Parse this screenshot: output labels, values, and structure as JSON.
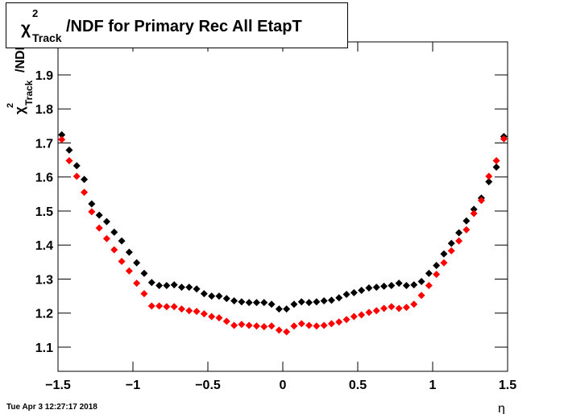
{
  "chart_data": {
    "type": "scatter",
    "title": {
      "symbol": "χ",
      "sup": "2",
      "sub": "Track",
      "rest": "/NDF for Primary Rec All EtapT"
    },
    "y_label": {
      "symbol": "χ",
      "sup": "2",
      "sub": "Track",
      "rest": "/NDF"
    },
    "x_label": "η",
    "timestamp": "Tue Apr  3 12:27:17 2018",
    "x": [
      -1.475,
      -1.425,
      -1.375,
      -1.325,
      -1.275,
      -1.225,
      -1.175,
      -1.125,
      -1.075,
      -1.025,
      -0.975,
      -0.925,
      -0.875,
      -0.825,
      -0.775,
      -0.725,
      -0.675,
      -0.625,
      -0.575,
      -0.525,
      -0.475,
      -0.425,
      -0.375,
      -0.325,
      -0.275,
      -0.225,
      -0.175,
      -0.125,
      -0.075,
      -0.025,
      0.025,
      0.075,
      0.125,
      0.175,
      0.225,
      0.275,
      0.325,
      0.375,
      0.425,
      0.475,
      0.525,
      0.575,
      0.625,
      0.675,
      0.725,
      0.775,
      0.825,
      0.875,
      0.925,
      0.975,
      1.025,
      1.075,
      1.125,
      1.175,
      1.225,
      1.275,
      1.325,
      1.375,
      1.425,
      1.475
    ],
    "series": [
      {
        "color": "#000000",
        "values": [
          1.724,
          1.679,
          1.633,
          1.593,
          1.521,
          1.488,
          1.469,
          1.438,
          1.412,
          1.379,
          1.348,
          1.317,
          1.29,
          1.281,
          1.281,
          1.283,
          1.276,
          1.276,
          1.271,
          1.257,
          1.25,
          1.25,
          1.243,
          1.236,
          1.233,
          1.231,
          1.231,
          1.231,
          1.226,
          1.212,
          1.212,
          1.226,
          1.233,
          1.231,
          1.233,
          1.236,
          1.238,
          1.245,
          1.255,
          1.26,
          1.267,
          1.274,
          1.276,
          1.279,
          1.281,
          1.288,
          1.281,
          1.283,
          1.293,
          1.317,
          1.34,
          1.374,
          1.405,
          1.436,
          1.471,
          1.505,
          1.538,
          1.586,
          1.629,
          1.719
        ]
      },
      {
        "color": "#ff0000",
        "values": [
          1.71,
          1.648,
          1.602,
          1.555,
          1.498,
          1.45,
          1.419,
          1.386,
          1.352,
          1.324,
          1.288,
          1.257,
          1.221,
          1.221,
          1.219,
          1.219,
          1.212,
          1.207,
          1.205,
          1.198,
          1.19,
          1.186,
          1.176,
          1.164,
          1.167,
          1.164,
          1.162,
          1.16,
          1.162,
          1.15,
          1.145,
          1.162,
          1.169,
          1.164,
          1.162,
          1.164,
          1.169,
          1.174,
          1.181,
          1.19,
          1.195,
          1.202,
          1.207,
          1.214,
          1.219,
          1.214,
          1.217,
          1.226,
          1.252,
          1.281,
          1.314,
          1.348,
          1.383,
          1.412,
          1.445,
          1.493,
          1.531,
          1.602,
          1.648,
          1.712
        ]
      }
    ],
    "xlim": [
      -1.5,
      1.5
    ],
    "xticks": [
      {
        "value": -1.5,
        "label": "−1.5"
      },
      {
        "value": -1,
        "label": "−1"
      },
      {
        "value": -0.5,
        "label": "−0.5"
      },
      0,
      0.5,
      1,
      1.5
    ],
    "ylim": [
      1.029,
      1.997
    ],
    "yticks": [
      1.1,
      1.2,
      1.3,
      1.4,
      1.5,
      1.6,
      1.7,
      1.8,
      1.9
    ]
  }
}
